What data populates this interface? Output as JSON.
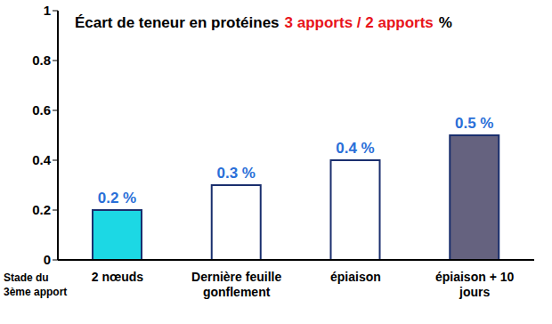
{
  "chart_data": {
    "type": "bar",
    "title": [
      "Écart de teneur en protéines",
      "3 apports / 2 apports",
      "%"
    ],
    "x_label": [
      "Stade du",
      "3ème apport"
    ],
    "categories": [
      "2 nœuds",
      "Dernière feuille gonflement",
      "épiaison",
      "épiaison + 10 jours"
    ],
    "values": [
      0.2,
      0.3,
      0.4,
      0.5
    ],
    "value_labels": [
      "0.2 %",
      "0.3 %",
      "0.4 %",
      "0.5 %"
    ],
    "colors": [
      "#1cd8e4",
      "#ffffff",
      "#ffffff",
      "#65627f"
    ],
    "ylim": [
      0,
      1
    ],
    "yticks": [
      0,
      0.2,
      0.4,
      0.6,
      0.8,
      1
    ],
    "grid": false,
    "data_labels": true
  }
}
